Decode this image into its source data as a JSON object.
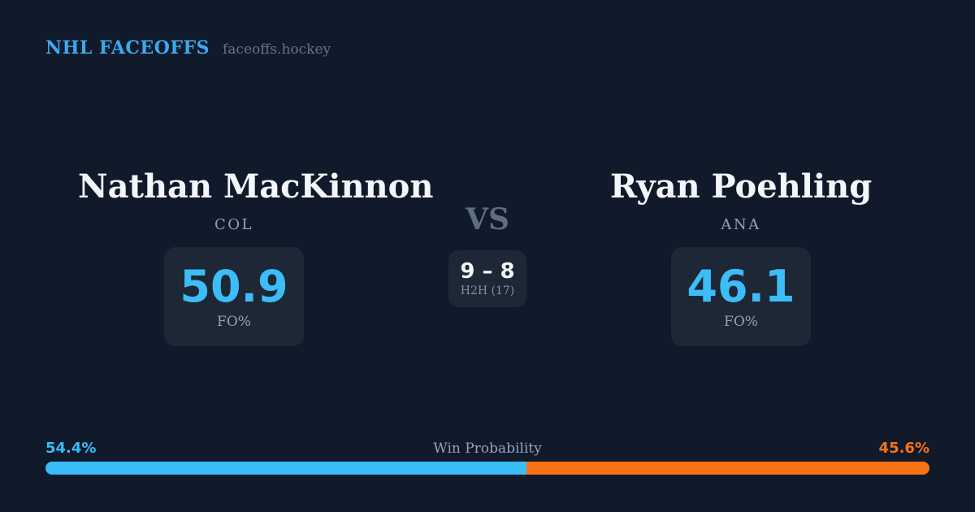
{
  "header": {
    "brand": "NHL FACEOFFS",
    "site": "faceoffs.hockey"
  },
  "matchup": {
    "vs_label": "VS",
    "h2h": {
      "score": "9 – 8",
      "label": "H2H (17)"
    },
    "players": [
      {
        "name": "Nathan MacKinnon",
        "team": "COL",
        "fo_pct": "50.9",
        "stat_label": "FO%"
      },
      {
        "name": "Ryan Poehling",
        "team": "ANA",
        "fo_pct": "46.1",
        "stat_label": "FO%"
      }
    ]
  },
  "win_probability": {
    "label": "Win Probability",
    "left_label": "54.4%",
    "right_label": "45.6%",
    "left_pct": 54.4,
    "right_pct": 45.6,
    "left_color": "#38bdf8",
    "right_color": "#f97316"
  },
  "colors": {
    "background": "#111a2a",
    "card": "#1d2736",
    "accent_blue": "#3cbdf8",
    "accent_orange": "#f97316",
    "brand_blue": "#3ba9f0",
    "muted_text": "#93a3b8"
  }
}
